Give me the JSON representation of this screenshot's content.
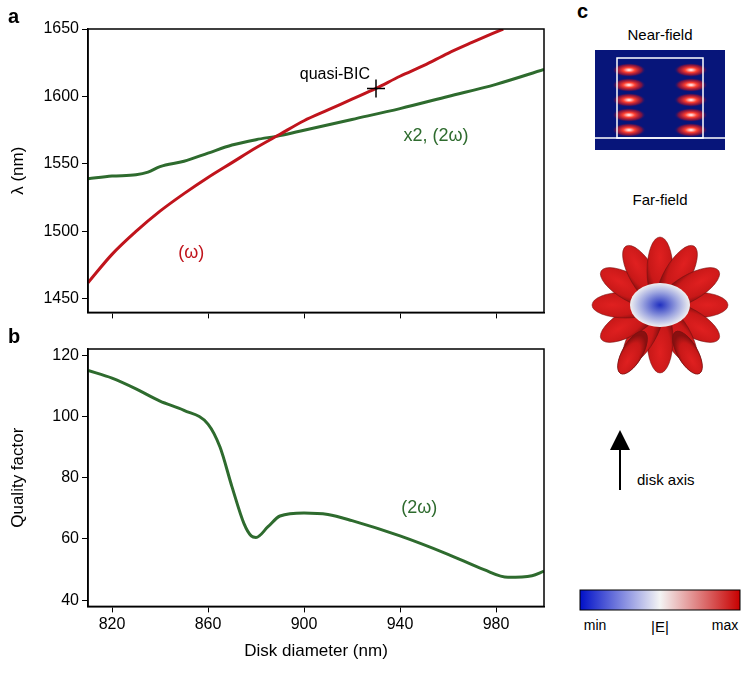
{
  "chart_data": [
    {
      "panel": "a",
      "type": "line",
      "y_label": "λ (nm)",
      "xlim": [
        810,
        1000
      ],
      "xticks": [
        820,
        860,
        900,
        940,
        980
      ],
      "ylim": [
        1440,
        1650
      ],
      "yticks": [
        1450,
        1500,
        1550,
        1600,
        1650
      ],
      "tick_labels": "y",
      "grid": false,
      "legend": false,
      "series": [
        {
          "name": "(ω)",
          "color": "#c0141c",
          "label_at": [
            853,
            1484
          ],
          "x": [
            810,
            820,
            830,
            840,
            850,
            860,
            870,
            880,
            890,
            900,
            910,
            920,
            930,
            940,
            950,
            960,
            970,
            983
          ],
          "values": [
            1462,
            1483,
            1500,
            1515,
            1528,
            1540,
            1551,
            1562,
            1572,
            1582,
            1590,
            1598,
            1606,
            1615,
            1623,
            1632,
            1640,
            1650
          ]
        },
        {
          "name": "x2, (2ω)",
          "color": "#2e6b2e",
          "label_at": [
            955,
            1571
          ],
          "x": [
            810,
            820,
            830,
            835,
            840,
            850,
            860,
            870,
            880,
            890,
            900,
            920,
            940,
            960,
            980,
            1000
          ],
          "values": [
            1539,
            1541,
            1542,
            1544,
            1548,
            1552,
            1558,
            1564,
            1568,
            1571,
            1575,
            1583,
            1591,
            1600,
            1609,
            1620
          ]
        }
      ],
      "annotations": [
        {
          "text": "quasi-BIC",
          "x": 930,
          "y": 1606,
          "marker": "cross"
        }
      ]
    },
    {
      "panel": "b",
      "type": "line",
      "x_label": "Disk diameter (nm)",
      "y_label": "Quality factor",
      "xlim": [
        810,
        1000
      ],
      "xticks": [
        820,
        860,
        900,
        940,
        980
      ],
      "ylim": [
        38,
        122
      ],
      "yticks": [
        40,
        60,
        80,
        100,
        120
      ],
      "tick_labels": true,
      "grid": false,
      "legend": false,
      "series": [
        {
          "name": "(2ω)",
          "color": "#2e6b2e",
          "label_at": [
            948,
            70
          ],
          "x": [
            810,
            820,
            830,
            840,
            850,
            860,
            865,
            870,
            875,
            878,
            880,
            885,
            890,
            900,
            910,
            920,
            940,
            960,
            975,
            985,
            995,
            1000
          ],
          "values": [
            115,
            112.5,
            109,
            105,
            102,
            97.5,
            90,
            77,
            65,
            61,
            60.5,
            64,
            67.5,
            68.5,
            68,
            66,
            61,
            55,
            50,
            47.5,
            48,
            49.5
          ]
        }
      ]
    }
  ],
  "panel_c": {
    "letter": "c",
    "near_field_title": "Near-field",
    "far_field_title": "Far-field",
    "axis_label": "disk axis",
    "colorbar": {
      "min_label": "min",
      "title": "|E|",
      "max_label": "max"
    }
  }
}
